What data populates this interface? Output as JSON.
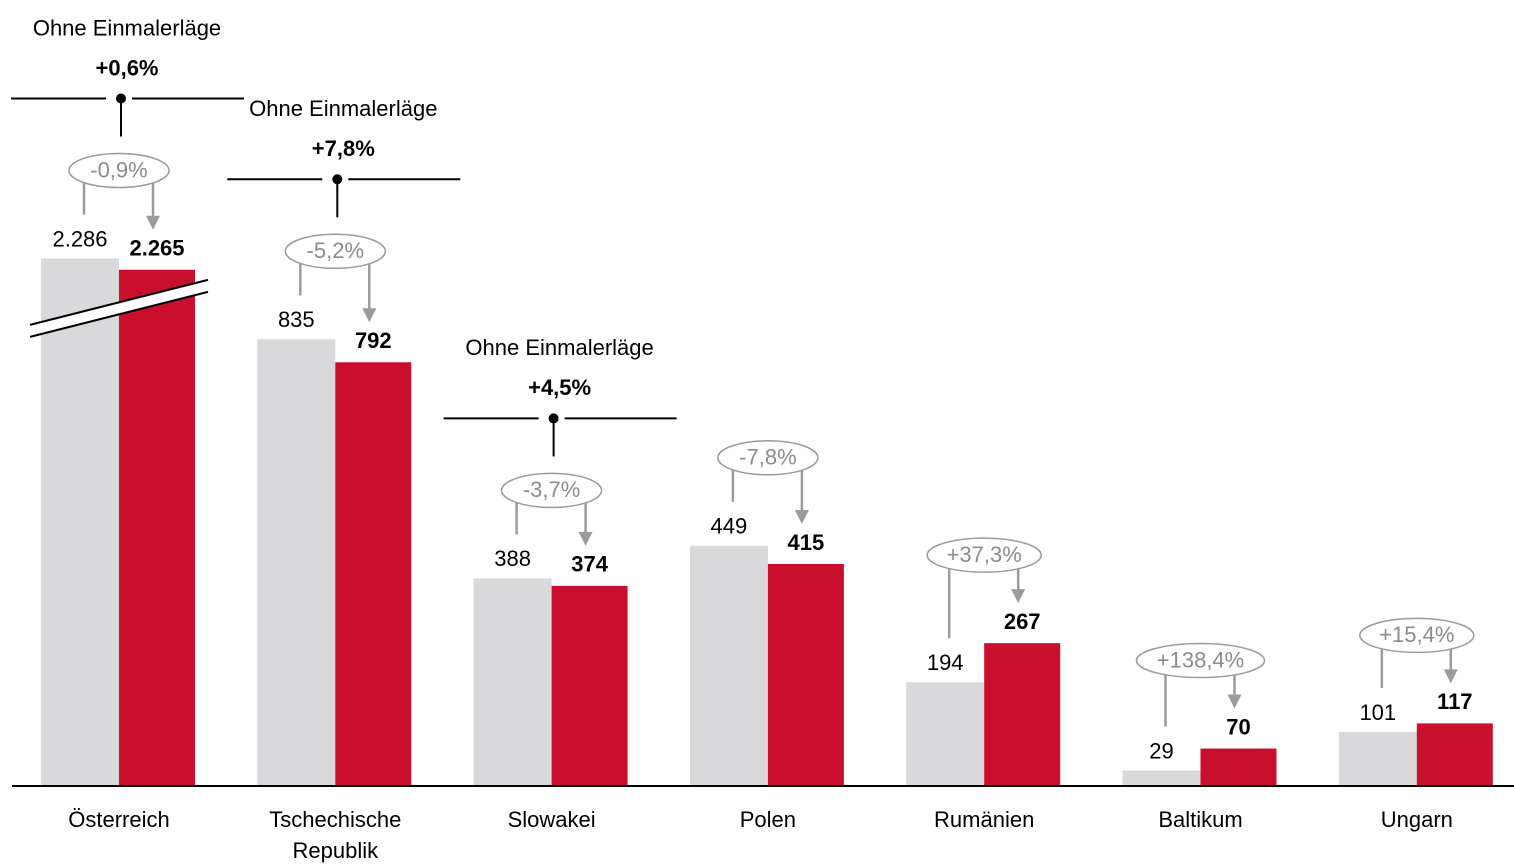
{
  "chart_data": {
    "type": "bar",
    "categories": [
      "Österreich",
      "Tschechische Republik",
      "Slowakei",
      "Polen",
      "Rumänien",
      "Baltikum",
      "Ungarn"
    ],
    "series": [
      {
        "color": "#d9d9db",
        "values": [
          2286,
          835,
          388,
          449,
          194,
          29,
          101
        ],
        "value_labels": [
          "2.286",
          "835",
          "388",
          "449",
          "194",
          "29",
          "101"
        ]
      },
      {
        "color": "#c8102e",
        "values": [
          2265,
          792,
          374,
          415,
          267,
          70,
          117
        ],
        "value_labels": [
          "2.265",
          "792",
          "374",
          "415",
          "267",
          "70",
          "117"
        ]
      }
    ],
    "change_labels": [
      "-0,9%",
      "-5,2%",
      "-3,7%",
      "-7,8%",
      "+37,3%",
      "+138,4%",
      "+15,4%"
    ],
    "adjusted_title": "Ohne Einmalerläge",
    "adjusted_changes": [
      "+0,6%",
      "+7,8%",
      "+4,5%",
      null,
      null,
      null,
      null
    ],
    "ylim": [
      0,
      2300
    ],
    "axis_break": [
      890,
      2190
    ]
  }
}
